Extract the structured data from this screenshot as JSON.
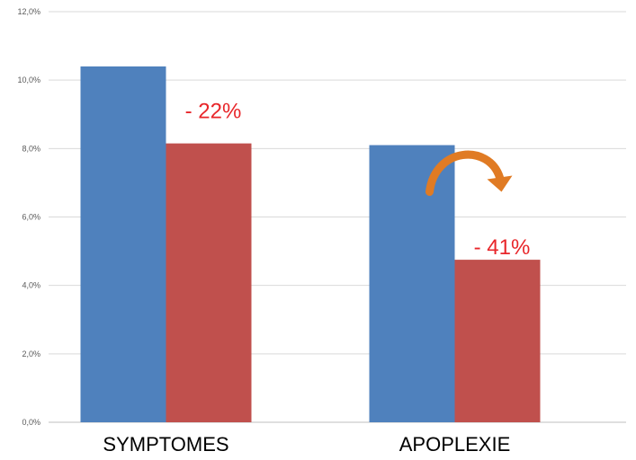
{
  "chart_data": {
    "type": "bar",
    "categories": [
      "SYMPTOMES",
      "APOPLEXIE"
    ],
    "series": [
      {
        "values": [
          10.4,
          8.1
        ],
        "color": "#4f81bd"
      },
      {
        "values": [
          8.15,
          4.75
        ],
        "color": "#c0504d"
      }
    ],
    "y_ticks": [
      "0,0%",
      "2,0%",
      "4,0%",
      "6,0%",
      "8,0%",
      "10,0%",
      "12,0%"
    ],
    "ylim": [
      0,
      12
    ],
    "grid": true,
    "annotations": [
      {
        "text": "- 22%",
        "category": "SYMPTOMES"
      },
      {
        "text": "- 41%",
        "category": "APOPLEXIE"
      }
    ],
    "arrow": {
      "category": "APOPLEXIE",
      "color": "#e07b24",
      "icon": "curved-arrow-icon"
    }
  }
}
